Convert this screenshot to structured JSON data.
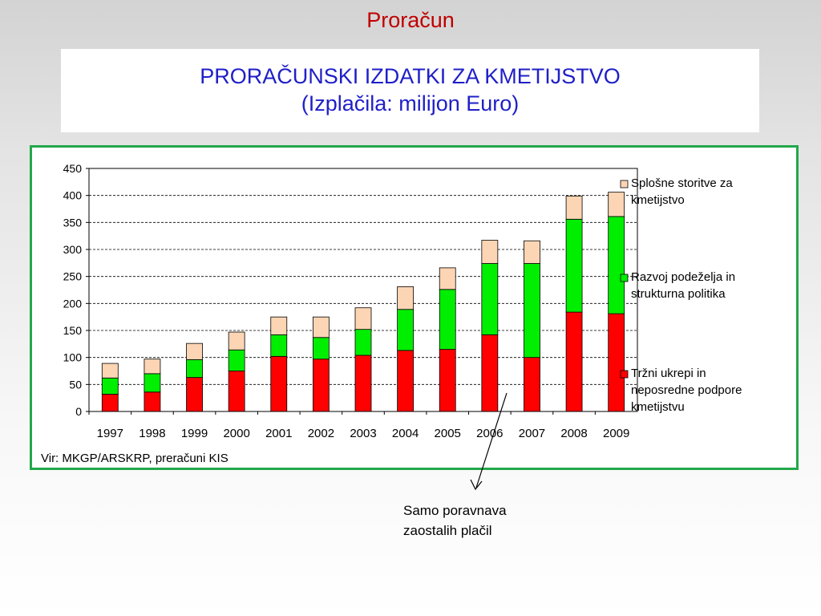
{
  "slide_title": "Proračun",
  "heading": {
    "line1": "PRORAČUNSKI IZDATKI ZA KMETIJSTVO",
    "line2": "(Izplačila: milijon Euro)"
  },
  "source_note": "Vir: MKGP/ARSKRP, preračuni KIS",
  "annotation": {
    "line1": "Samo poravnava",
    "line2": "zaostalih plačil"
  },
  "colors": {
    "market_measures": "#ff0000",
    "rural_development": "#00ee00",
    "general_services": "#fcd5b4",
    "frame": "#22a84a",
    "title_red": "#c00000",
    "heading_blue": "#1f1fc8"
  },
  "chart_data": {
    "type": "bar",
    "stacked": true,
    "categories": [
      "1997",
      "1998",
      "1999",
      "2000",
      "2001",
      "2002",
      "2003",
      "2004",
      "2005",
      "2006",
      "2007",
      "2008",
      "2009"
    ],
    "series": [
      {
        "name_lines": [
          "Tržni ukrepi in",
          "neposredne podpore",
          "kmetijstvu"
        ],
        "color": "#ff0000",
        "values": [
          32,
          36,
          63,
          75,
          102,
          97,
          104,
          113,
          115,
          142,
          100,
          184,
          181
        ]
      },
      {
        "name_lines": [
          "Razvoj podeželja in",
          "strukturna politika"
        ],
        "color": "#00ee00",
        "values": [
          30,
          34,
          33,
          39,
          40,
          40,
          48,
          76,
          111,
          132,
          174,
          172,
          180
        ]
      },
      {
        "name_lines": [
          "Splošne storitve za",
          "kmetijstvo"
        ],
        "color": "#fcd5b4",
        "values": [
          27,
          27,
          30,
          33,
          33,
          38,
          40,
          42,
          40,
          43,
          42,
          43,
          45
        ]
      }
    ],
    "ylim": [
      0,
      450
    ],
    "yticks": [
      "0",
      "50",
      "100",
      "150",
      "200",
      "250",
      "300",
      "350",
      "400",
      "450"
    ],
    "grid": true,
    "legend_position": "right",
    "annotation_target_category": "2007"
  }
}
